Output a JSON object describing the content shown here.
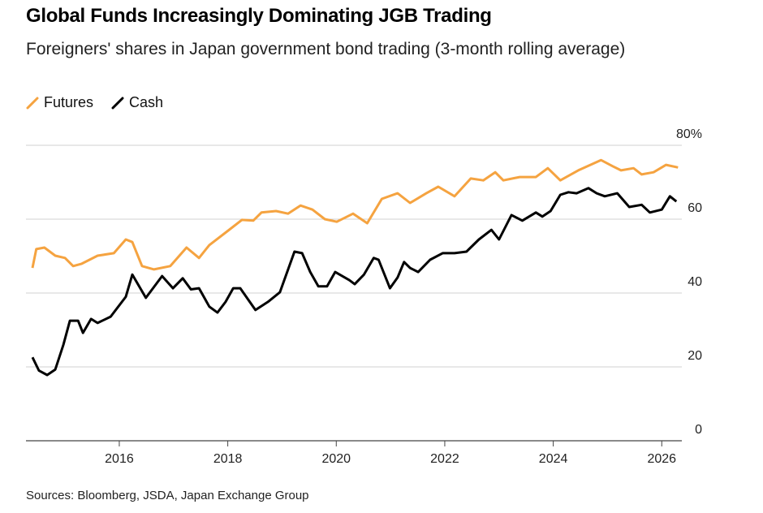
{
  "chart_data": {
    "type": "line",
    "title": "Global Funds Increasingly Dominating JGB Trading",
    "subtitle": "Foreigners' shares in Japan government bond trading (3-month rolling average)",
    "source": "Sources: Bloomberg, JSDA, Japan Exchange Group",
    "xlim": [
      2014.28,
      2026.37
    ],
    "xticks": [
      2016,
      2018,
      2020,
      2022,
      2024,
      2026
    ],
    "ylim": [
      0,
      80
    ],
    "yticks": [
      0,
      20,
      40,
      60,
      {
        "value": 80,
        "label": "80%"
      }
    ],
    "grid": true,
    "legend": "top",
    "series": [
      {
        "name": "Futures",
        "color": "#f5a340",
        "x": [
          2014.4,
          2014.47,
          2014.62,
          2014.82,
          2015.0,
          2015.15,
          2015.3,
          2015.6,
          2015.9,
          2016.12,
          2016.24,
          2016.42,
          2016.64,
          2016.94,
          2017.24,
          2017.47,
          2017.66,
          2017.99,
          2018.26,
          2018.47,
          2018.62,
          2018.89,
          2019.11,
          2019.34,
          2019.56,
          2019.79,
          2020.01,
          2020.31,
          2020.57,
          2020.84,
          2021.13,
          2021.36,
          2021.66,
          2021.88,
          2022.18,
          2022.48,
          2022.71,
          2022.93,
          2023.08,
          2023.38,
          2023.68,
          2023.9,
          2024.13,
          2024.46,
          2024.88,
          2025.1,
          2025.25,
          2025.48,
          2025.63,
          2025.85,
          2026.08,
          2026.3
        ],
        "values": [
          46.8,
          51.9,
          52.3,
          50.1,
          49.5,
          47.3,
          47.9,
          50.1,
          50.8,
          54.5,
          53.8,
          47.3,
          46.4,
          47.3,
          52.3,
          49.5,
          53,
          56.7,
          59.8,
          59.6,
          61.8,
          62.2,
          61.5,
          63.7,
          62.6,
          60,
          59.3,
          61.5,
          58.9,
          65.5,
          67,
          64.4,
          67,
          68.8,
          66.2,
          71,
          70.5,
          72.7,
          70.5,
          71.4,
          71.4,
          73.8,
          70.5,
          73.2,
          76,
          74.3,
          73.2,
          73.8,
          72.1,
          72.7,
          74.7,
          74
        ]
      },
      {
        "name": "Cash",
        "color": "#000000",
        "x": [
          2014.4,
          2014.52,
          2014.67,
          2014.82,
          2014.97,
          2015.09,
          2015.24,
          2015.33,
          2015.48,
          2015.6,
          2015.84,
          2016.12,
          2016.24,
          2016.49,
          2016.79,
          2016.99,
          2017.17,
          2017.32,
          2017.47,
          2017.66,
          2017.81,
          2017.96,
          2018.1,
          2018.23,
          2018.51,
          2018.74,
          2018.96,
          2019.23,
          2019.37,
          2019.52,
          2019.67,
          2019.83,
          2019.98,
          2020.24,
          2020.34,
          2020.51,
          2020.69,
          2020.78,
          2020.99,
          2021.13,
          2021.25,
          2021.36,
          2021.51,
          2021.73,
          2021.96,
          2022.18,
          2022.4,
          2022.63,
          2022.86,
          2023.0,
          2023.23,
          2023.43,
          2023.68,
          2023.8,
          2023.95,
          2024.13,
          2024.28,
          2024.43,
          2024.65,
          2024.8,
          2024.95,
          2025.18,
          2025.4,
          2025.63,
          2025.78,
          2026.0,
          2026.15,
          2026.27
        ],
        "values": [
          22.6,
          19,
          17.8,
          19.3,
          26,
          32.5,
          32.5,
          29.2,
          33,
          31.9,
          33.6,
          39,
          45,
          38.7,
          44.6,
          41.3,
          44,
          41,
          41.3,
          36.3,
          34.7,
          37.6,
          41.3,
          41.3,
          35.4,
          37.6,
          40.2,
          51.2,
          50.8,
          45.7,
          41.8,
          41.8,
          45.7,
          43.5,
          42.4,
          45,
          49.5,
          49,
          41.3,
          44.2,
          48.4,
          46.8,
          45.7,
          49,
          50.8,
          50.8,
          51.2,
          54.5,
          57.1,
          54.5,
          61.1,
          59.6,
          61.8,
          60.7,
          62.2,
          66.6,
          67.3,
          67,
          68.4,
          67,
          66.2,
          67,
          63.3,
          63.9,
          61.8,
          62.6,
          66.2,
          64.8
        ]
      }
    ]
  }
}
